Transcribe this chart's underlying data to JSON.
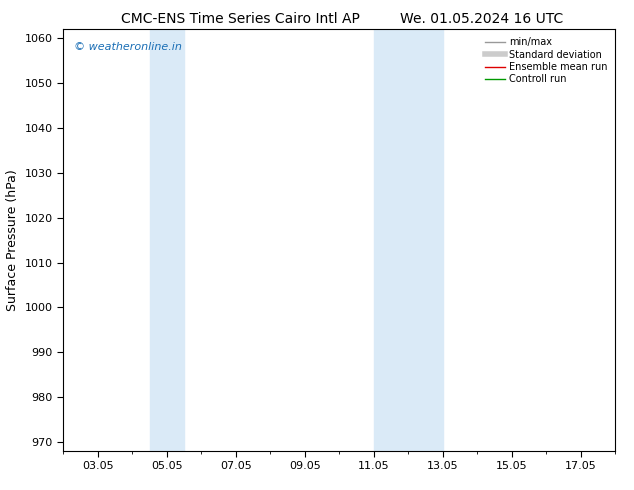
{
  "title_left": "CMC-ENS Time Series Cairo Intl AP",
  "title_right": "We. 01.05.2024 16 UTC",
  "ylabel": "Surface Pressure (hPa)",
  "ylim": [
    968,
    1062
  ],
  "yticks": [
    970,
    980,
    990,
    1000,
    1010,
    1020,
    1030,
    1040,
    1050,
    1060
  ],
  "xlim_min": 2.0,
  "xlim_max": 18.0,
  "xtick_labels": [
    "03.05",
    "05.05",
    "07.05",
    "09.05",
    "11.05",
    "13.05",
    "15.05",
    "17.05"
  ],
  "xtick_positions": [
    3,
    5,
    7,
    9,
    11,
    13,
    15,
    17
  ],
  "watermark": "© weatheronline.in",
  "watermark_color": "#1a6eb5",
  "shaded_bands": [
    {
      "x_start": 4.5,
      "x_end": 5.5
    },
    {
      "x_start": 11.0,
      "x_end": 13.0
    }
  ],
  "shaded_color": "#daeaf7",
  "background_color": "#ffffff",
  "legend_entries": [
    {
      "label": "min/max",
      "color": "#999999",
      "lw": 1.0
    },
    {
      "label": "Standard deviation",
      "color": "#cccccc",
      "lw": 4.0
    },
    {
      "label": "Ensemble mean run",
      "color": "#dd0000",
      "lw": 1.0
    },
    {
      "label": "Controll run",
      "color": "#009900",
      "lw": 1.0
    }
  ],
  "spine_color": "#000000",
  "title_fontsize": 10,
  "tick_fontsize": 8,
  "ylabel_fontsize": 9
}
